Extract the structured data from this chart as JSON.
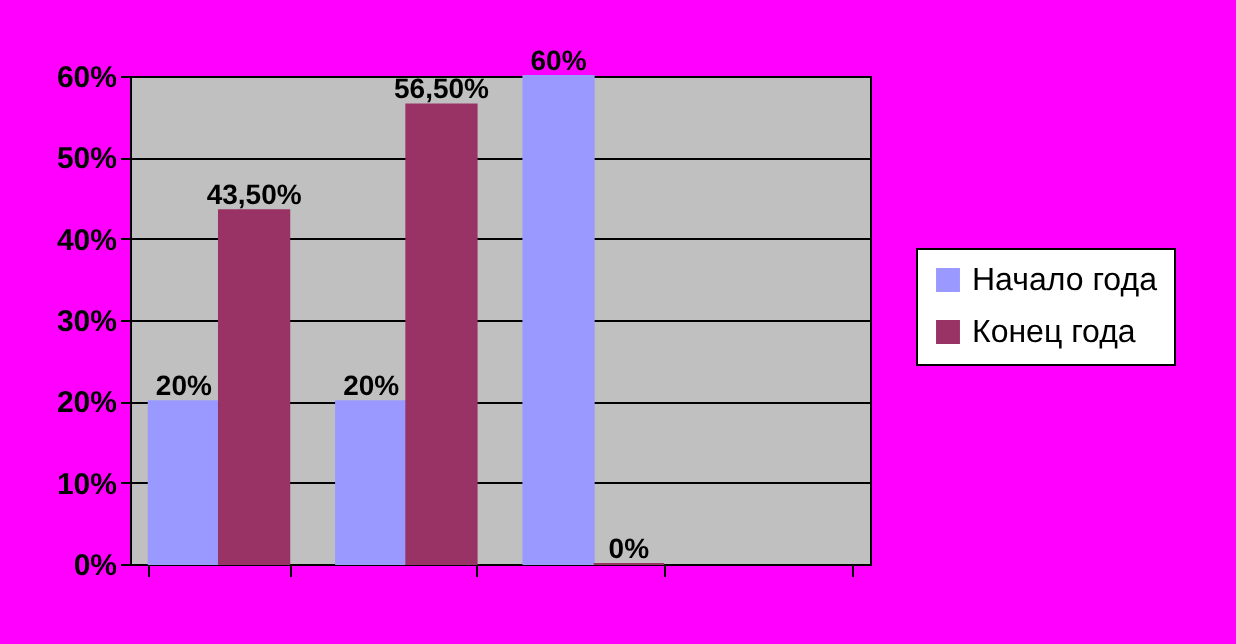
{
  "chart_data": {
    "type": "bar",
    "categories": [
      null,
      null,
      null,
      null
    ],
    "series": [
      {
        "name": "Начало года",
        "color": "#9999ff",
        "values": [
          20,
          20,
          60,
          null
        ],
        "value_labels": [
          "20%",
          "20%",
          "60%",
          null
        ]
      },
      {
        "name": "Конец года",
        "color": "#993366",
        "values": [
          43.5,
          56.5,
          0,
          null
        ],
        "value_labels": [
          "43,50%",
          "56,50%",
          "0%",
          null
        ]
      }
    ],
    "ylim": [
      0,
      60
    ],
    "yticks": [
      {
        "value": 0,
        "label": "0%"
      },
      {
        "value": 10,
        "label": "10%"
      },
      {
        "value": 20,
        "label": "20%"
      },
      {
        "value": 30,
        "label": "30%"
      },
      {
        "value": 40,
        "label": "40%"
      },
      {
        "value": 50,
        "label": "50%"
      },
      {
        "value": 60,
        "label": "60%"
      }
    ],
    "grid": "y",
    "legend": "right"
  }
}
